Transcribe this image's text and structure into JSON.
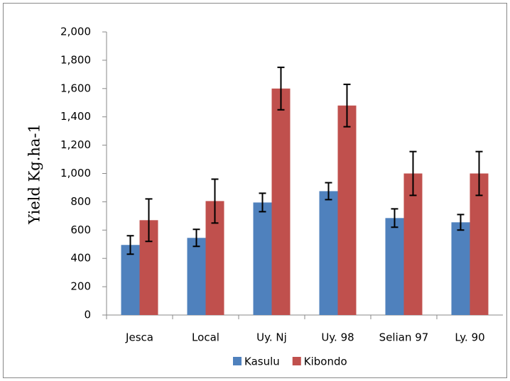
{
  "chart_data": {
    "type": "bar",
    "y_label": "Yield Kg.ha-1",
    "categories": [
      "Jesca",
      "Local",
      "Uy. Nj",
      "Uy. 98",
      "Selian 97",
      "Ly. 90"
    ],
    "series": [
      {
        "name": "Kasulu",
        "color": "#4f81bd",
        "values": [
          495,
          545,
          795,
          875,
          685,
          655
        ],
        "errors": [
          65,
          60,
          65,
          60,
          65,
          55
        ]
      },
      {
        "name": "Kibondo",
        "color": "#c0504d",
        "values": [
          670,
          805,
          1600,
          1480,
          1000,
          1000
        ],
        "errors": [
          150,
          155,
          150,
          150,
          155,
          155
        ]
      }
    ],
    "ylim": [
      0,
      2000
    ],
    "yticks": [
      0,
      200,
      400,
      600,
      800,
      {
        "value": 1000,
        "label": "1,000"
      },
      {
        "value": 1200,
        "label": "1,200"
      },
      {
        "value": 1400,
        "label": "1,400"
      },
      {
        "value": 1600,
        "label": "1,600"
      },
      {
        "value": 1800,
        "label": "1,800"
      },
      {
        "value": 2000,
        "label": "2,000"
      }
    ],
    "legend": "bottom"
  }
}
